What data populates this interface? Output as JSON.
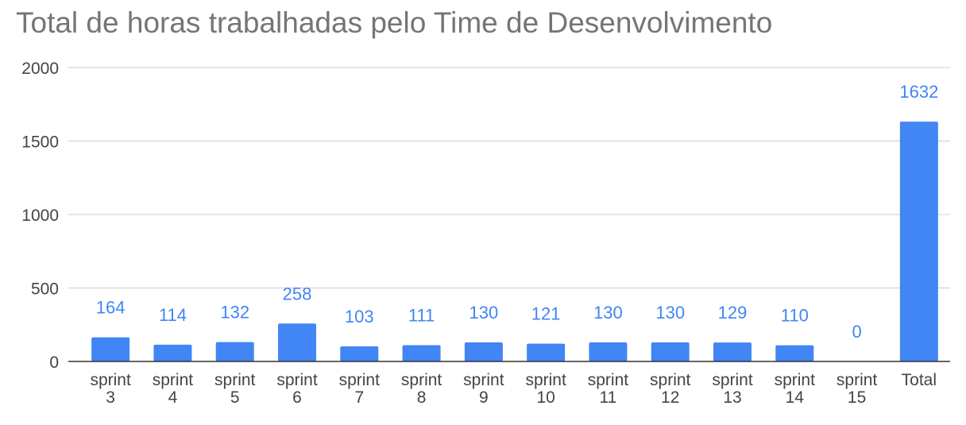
{
  "chart_data": {
    "type": "bar",
    "title": "Total de horas trabalhadas pelo Time de Desenvolvimento",
    "categories": [
      [
        "sprint",
        "3"
      ],
      [
        "sprint",
        "4"
      ],
      [
        "sprint",
        "5"
      ],
      [
        "sprint",
        "6"
      ],
      [
        "sprint",
        "7"
      ],
      [
        "sprint",
        "8"
      ],
      [
        "sprint",
        "9"
      ],
      [
        "sprint",
        "10"
      ],
      [
        "sprint",
        "11"
      ],
      [
        "sprint",
        "12"
      ],
      [
        "sprint",
        "13"
      ],
      [
        "sprint",
        "14"
      ],
      [
        "sprint",
        "15"
      ],
      [
        "Total"
      ]
    ],
    "values": [
      164,
      114,
      132,
      258,
      103,
      111,
      130,
      121,
      130,
      130,
      129,
      110,
      0,
      1632
    ],
    "ylim": [
      0,
      2000
    ],
    "yticks": [
      0,
      500,
      1000,
      1500,
      2000
    ],
    "grid": true,
    "legend": "none",
    "xlabel": "",
    "ylabel": "",
    "colors": {
      "bar": "#4285f4",
      "data_label": "#4285f4",
      "grid": "#cccccc",
      "axis_line": "#333333",
      "tick_label": "#444444",
      "title": "#757575"
    }
  }
}
